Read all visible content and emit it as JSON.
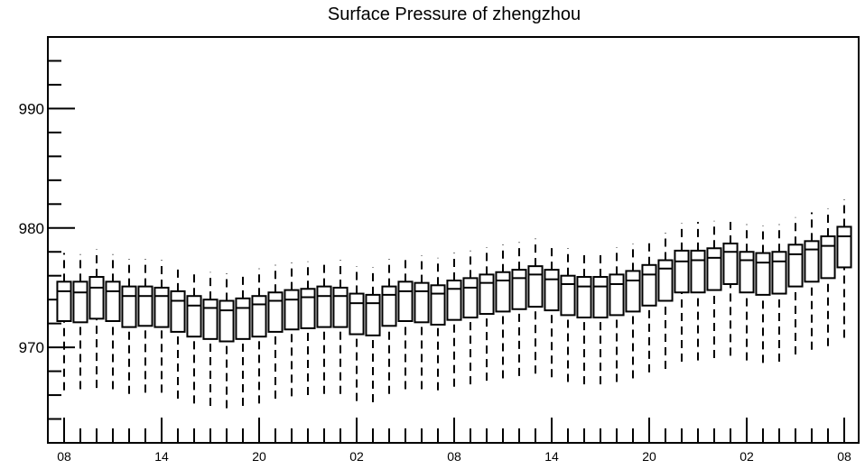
{
  "chart_data": {
    "type": "box",
    "title": "Surface Pressure of zhengzhou",
    "xlabel": "",
    "ylabel": "",
    "ylim": [
      962,
      996
    ],
    "y_major_ticks": [
      970,
      980,
      990
    ],
    "y_minor_step": 2,
    "x_tick_labels": [
      "08",
      "14",
      "20",
      "02",
      "08",
      "14",
      "20",
      "02",
      "08"
    ],
    "time_step_hours": 1,
    "grid": false,
    "legend": "none",
    "boxes": [
      {
        "x": 0,
        "whisker_low": 966.4,
        "q1": 972.2,
        "median": 974.7,
        "q3": 975.5,
        "whisker_high": 977.9
      },
      {
        "x": 1,
        "whisker_low": 966.5,
        "q1": 972.1,
        "median": 974.6,
        "q3": 975.5,
        "whisker_high": 977.8
      },
      {
        "x": 2,
        "whisker_low": 966.6,
        "q1": 972.4,
        "median": 975.0,
        "q3": 975.9,
        "whisker_high": 978.2
      },
      {
        "x": 3,
        "whisker_low": 966.5,
        "q1": 972.2,
        "median": 974.7,
        "q3": 975.5,
        "whisker_high": 977.8
      },
      {
        "x": 4,
        "whisker_low": 966.1,
        "q1": 971.7,
        "median": 974.3,
        "q3": 975.1,
        "whisker_high": 977.4
      },
      {
        "x": 5,
        "whisker_low": 966.2,
        "q1": 971.8,
        "median": 974.3,
        "q3": 975.1,
        "whisker_high": 977.4
      },
      {
        "x": 6,
        "whisker_low": 966.2,
        "q1": 971.7,
        "median": 974.3,
        "q3": 975.0,
        "whisker_high": 977.3
      },
      {
        "x": 7,
        "whisker_low": 965.7,
        "q1": 971.3,
        "median": 973.9,
        "q3": 974.7,
        "whisker_high": 976.9
      },
      {
        "x": 8,
        "whisker_low": 965.3,
        "q1": 970.9,
        "median": 973.5,
        "q3": 974.3,
        "whisker_high": 976.5
      },
      {
        "x": 9,
        "whisker_low": 965.1,
        "q1": 970.7,
        "median": 973.3,
        "q3": 974.0,
        "whisker_high": 976.3
      },
      {
        "x": 10,
        "whisker_low": 964.9,
        "q1": 970.5,
        "median": 973.1,
        "q3": 973.9,
        "whisker_high": 976.2
      },
      {
        "x": 11,
        "whisker_low": 965.1,
        "q1": 970.7,
        "median": 973.3,
        "q3": 974.1,
        "whisker_high": 976.3
      },
      {
        "x": 12,
        "whisker_low": 965.3,
        "q1": 970.9,
        "median": 973.6,
        "q3": 974.3,
        "whisker_high": 976.6
      },
      {
        "x": 13,
        "whisker_low": 965.7,
        "q1": 971.3,
        "median": 973.9,
        "q3": 974.6,
        "whisker_high": 976.9
      },
      {
        "x": 14,
        "whisker_low": 965.9,
        "q1": 971.5,
        "median": 974.0,
        "q3": 974.8,
        "whisker_high": 977.1
      },
      {
        "x": 15,
        "whisker_low": 966.0,
        "q1": 971.6,
        "median": 974.2,
        "q3": 974.9,
        "whisker_high": 977.2
      },
      {
        "x": 16,
        "whisker_low": 966.1,
        "q1": 971.7,
        "median": 974.3,
        "q3": 975.1,
        "whisker_high": 977.3
      },
      {
        "x": 17,
        "whisker_low": 966.1,
        "q1": 971.7,
        "median": 974.3,
        "q3": 975.0,
        "whisker_high": 977.3
      },
      {
        "x": 18,
        "whisker_low": 965.5,
        "q1": 971.1,
        "median": 973.7,
        "q3": 974.5,
        "whisker_high": 976.8
      },
      {
        "x": 19,
        "whisker_low": 965.4,
        "q1": 971.0,
        "median": 973.7,
        "q3": 974.4,
        "whisker_high": 976.7
      },
      {
        "x": 20,
        "whisker_low": 966.1,
        "q1": 971.8,
        "median": 974.4,
        "q3": 975.1,
        "whisker_high": 977.4
      },
      {
        "x": 21,
        "whisker_low": 966.5,
        "q1": 972.2,
        "median": 974.7,
        "q3": 975.5,
        "whisker_high": 977.7
      },
      {
        "x": 22,
        "whisker_low": 966.5,
        "q1": 972.1,
        "median": 974.7,
        "q3": 975.4,
        "whisker_high": 977.7
      },
      {
        "x": 23,
        "whisker_low": 966.4,
        "q1": 971.9,
        "median": 974.5,
        "q3": 975.2,
        "whisker_high": 977.5
      },
      {
        "x": 24,
        "whisker_low": 966.7,
        "q1": 972.3,
        "median": 974.9,
        "q3": 975.6,
        "whisker_high": 977.9
      },
      {
        "x": 25,
        "whisker_low": 966.9,
        "q1": 972.5,
        "median": 975.0,
        "q3": 975.8,
        "whisker_high": 978.1
      },
      {
        "x": 26,
        "whisker_low": 967.2,
        "q1": 972.8,
        "median": 975.4,
        "q3": 976.1,
        "whisker_high": 978.4
      },
      {
        "x": 27,
        "whisker_low": 967.4,
        "q1": 973.0,
        "median": 975.6,
        "q3": 976.3,
        "whisker_high": 978.6
      },
      {
        "x": 28,
        "whisker_low": 967.6,
        "q1": 973.2,
        "median": 975.8,
        "q3": 976.5,
        "whisker_high": 978.8
      },
      {
        "x": 29,
        "whisker_low": 967.8,
        "q1": 973.4,
        "median": 976.1,
        "q3": 976.8,
        "whisker_high": 979.1
      },
      {
        "x": 30,
        "whisker_low": 967.5,
        "q1": 973.1,
        "median": 975.7,
        "q3": 976.5,
        "whisker_high": 978.7
      },
      {
        "x": 31,
        "whisker_low": 967.1,
        "q1": 972.7,
        "median": 975.3,
        "q3": 976.0,
        "whisker_high": 978.3
      },
      {
        "x": 32,
        "whisker_low": 966.9,
        "q1": 972.5,
        "median": 975.1,
        "q3": 975.9,
        "whisker_high": 978.1
      },
      {
        "x": 33,
        "whisker_low": 966.9,
        "q1": 972.5,
        "median": 975.1,
        "q3": 975.9,
        "whisker_high": 978.1
      },
      {
        "x": 34,
        "whisker_low": 967.1,
        "q1": 972.7,
        "median": 975.3,
        "q3": 976.1,
        "whisker_high": 978.4
      },
      {
        "x": 35,
        "whisker_low": 967.4,
        "q1": 973.0,
        "median": 975.6,
        "q3": 976.4,
        "whisker_high": 978.7
      },
      {
        "x": 36,
        "whisker_low": 967.9,
        "q1": 973.5,
        "median": 976.1,
        "q3": 976.9,
        "whisker_high": 979.1
      },
      {
        "x": 37,
        "whisker_low": 968.2,
        "q1": 973.9,
        "median": 976.6,
        "q3": 977.3,
        "whisker_high": 979.6
      },
      {
        "x": 38,
        "whisker_low": 968.8,
        "q1": 974.6,
        "median": 977.2,
        "q3": 978.1,
        "whisker_high": 980.4
      },
      {
        "x": 39,
        "whisker_low": 968.9,
        "q1": 974.6,
        "median": 977.3,
        "q3": 978.1,
        "whisker_high": 980.5
      },
      {
        "x": 40,
        "whisker_low": 969.1,
        "q1": 974.8,
        "median": 977.5,
        "q3": 978.3,
        "whisker_high": 980.6
      },
      {
        "x": 41,
        "whisker_low": 969.3,
        "q1": 975.3,
        "median": 978.0,
        "q3": 978.7,
        "whisker_high": 980.9
      },
      {
        "x": 42,
        "whisker_low": 968.9,
        "q1": 974.6,
        "median": 977.3,
        "q3": 978.0,
        "whisker_high": 980.3
      },
      {
        "x": 43,
        "whisker_low": 968.7,
        "q1": 974.4,
        "median": 977.1,
        "q3": 977.9,
        "whisker_high": 980.2
      },
      {
        "x": 44,
        "whisker_low": 968.8,
        "q1": 974.5,
        "median": 977.2,
        "q3": 978.0,
        "whisker_high": 980.3
      },
      {
        "x": 45,
        "whisker_low": 969.4,
        "q1": 975.1,
        "median": 977.8,
        "q3": 978.6,
        "whisker_high": 980.9
      },
      {
        "x": 46,
        "whisker_low": 969.8,
        "q1": 975.5,
        "median": 978.2,
        "q3": 978.9,
        "whisker_high": 981.3
      },
      {
        "x": 47,
        "whisker_low": 970.1,
        "q1": 975.8,
        "median": 978.5,
        "q3": 979.3,
        "whisker_high": 981.6
      },
      {
        "x": 48,
        "whisker_low": 970.8,
        "q1": 976.7,
        "median": 979.3,
        "q3": 980.1,
        "whisker_high": 982.4
      }
    ]
  }
}
